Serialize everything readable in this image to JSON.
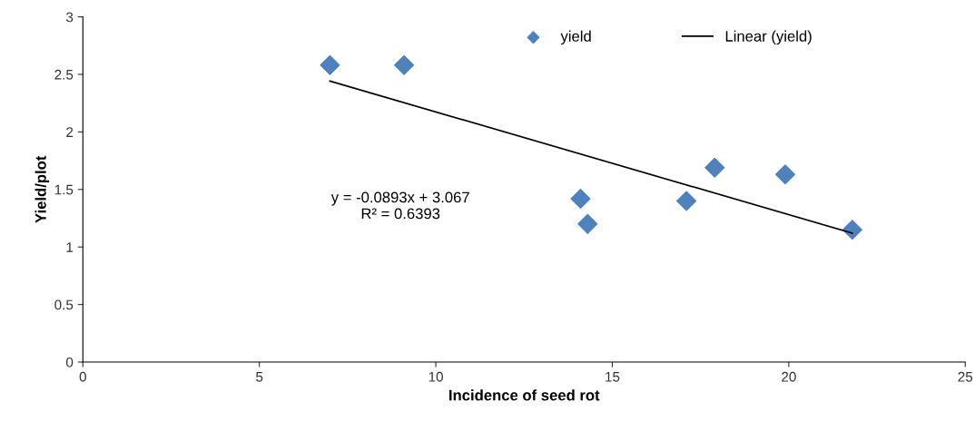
{
  "chart_data": {
    "type": "scatter",
    "xlabel": "Incidence of seed rot",
    "ylabel": "Yield/plot",
    "xlim": [
      0,
      25
    ],
    "xticks": [
      0,
      5,
      10,
      15,
      20,
      25
    ],
    "ylim": [
      0,
      3
    ],
    "yticks": [
      0,
      0.5,
      1,
      1.5,
      2,
      2.5,
      3
    ],
    "grid": false,
    "legend": "top",
    "series": [
      {
        "name": "yield",
        "marker": "diamond",
        "color": "#4f81bd",
        "x": [
          7.0,
          9.1,
          14.1,
          14.3,
          17.1,
          17.9,
          19.9,
          21.8
        ],
        "values": [
          2.58,
          2.58,
          1.42,
          1.2,
          1.4,
          1.69,
          1.63,
          1.15
        ]
      },
      {
        "name": "Linear (yield)",
        "type": "line",
        "marker": "none",
        "line_style": "solid",
        "color": "#000000",
        "x": [
          7.0,
          21.8
        ],
        "values": [
          2.442,
          1.12
        ]
      }
    ],
    "annotations": [
      "y = -0.0893x + 3.067\nR² = 0.6393"
    ]
  }
}
